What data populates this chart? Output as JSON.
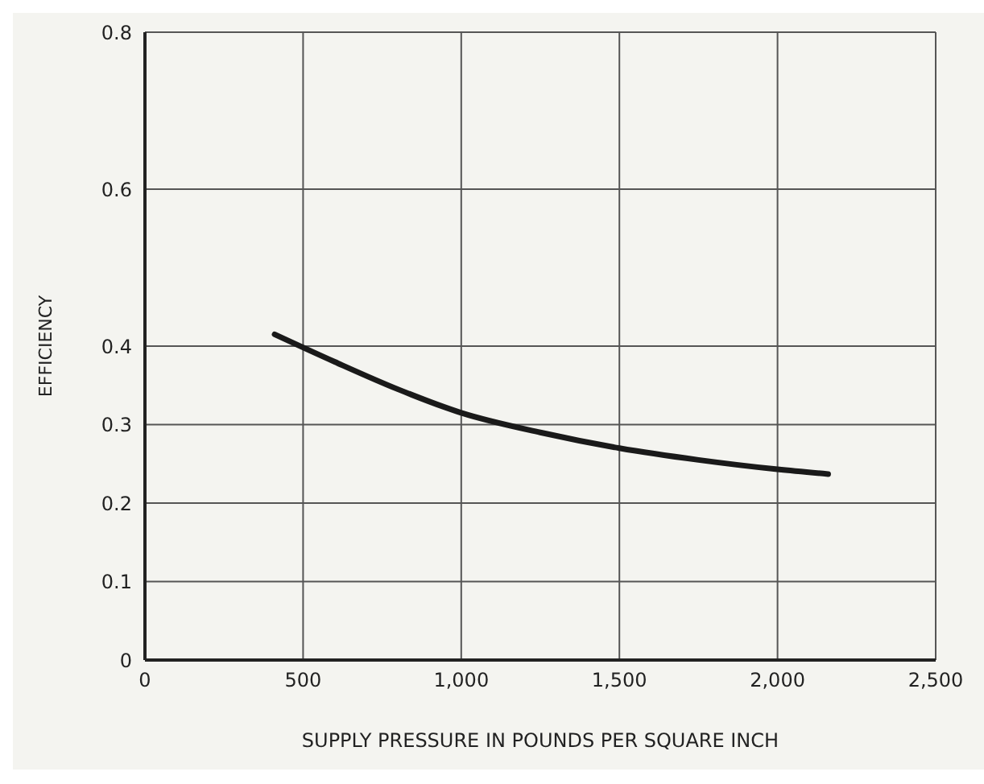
{
  "chart_data": {
    "type": "line",
    "xlabel": "SUPPLY PRESSURE IN POUNDS PER SQUARE INCH",
    "ylabel": "EFFICIENCY",
    "x": [
      410,
      600,
      800,
      1000,
      1250,
      1500,
      1750,
      2000,
      2160
    ],
    "series": [
      {
        "color": "#1a1a1a",
        "values": [
          0.415,
          0.38,
          0.345,
          0.315,
          0.29,
          0.27,
          0.255,
          0.243,
          0.237
        ]
      }
    ],
    "xlim": [
      0,
      2500
    ],
    "xticks": [
      0,
      500,
      {
        "value": 1000,
        "label": "1,000"
      },
      {
        "value": 1500,
        "label": "1,500"
      },
      {
        "value": 2000,
        "label": "2,000"
      },
      {
        "value": 2500,
        "label": "2,500"
      }
    ],
    "ylim": [
      0,
      0.8
    ],
    "yticks": [
      0,
      0.1,
      0.2,
      0.3,
      0.4,
      0.6,
      0.8
    ],
    "grid": true,
    "marker": "none",
    "line_style": "solid"
  }
}
